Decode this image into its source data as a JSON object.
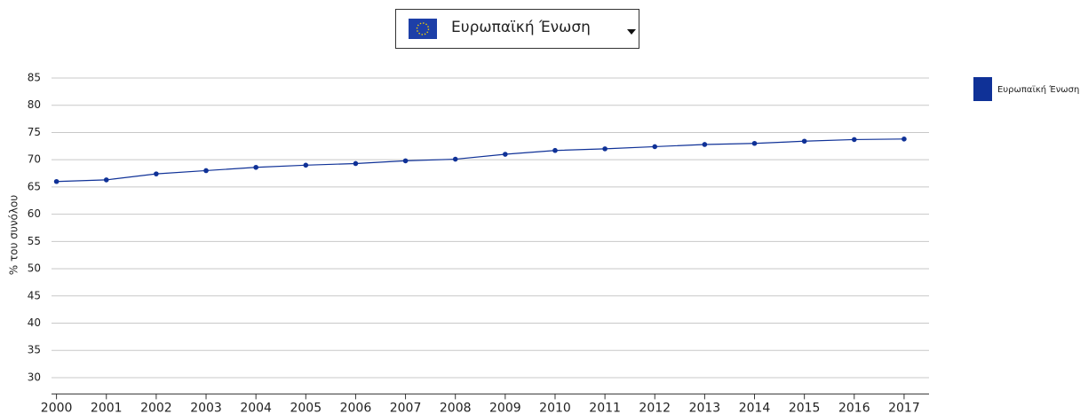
{
  "dropdown": {
    "selected": "Ευρωπαϊκή Ένωση"
  },
  "chart_data": {
    "type": "line",
    "y_label": "% του συνόλου",
    "x": [
      2000,
      2001,
      2002,
      2003,
      2004,
      2005,
      2006,
      2007,
      2008,
      2009,
      2010,
      2011,
      2012,
      2013,
      2014,
      2015,
      2016,
      2017
    ],
    "series": [
      {
        "name": "Ευρωπαϊκή Ένωση",
        "color": "#0f3197",
        "values": [
          66.0,
          66.3,
          67.4,
          68.0,
          68.6,
          69.0,
          69.3,
          69.8,
          70.1,
          71.0,
          71.7,
          72.0,
          72.4,
          72.8,
          73.0,
          73.4,
          73.7,
          73.8
        ]
      }
    ],
    "xlim": [
      1999.9,
      2017.5
    ],
    "xticks": [
      2000,
      2001,
      2002,
      2003,
      2004,
      2005,
      2006,
      2007,
      2008,
      2009,
      2010,
      2011,
      2012,
      2013,
      2014,
      2015,
      2016,
      2017
    ],
    "ylim": [
      27,
      85
    ],
    "yticks": [
      30,
      35,
      40,
      45,
      50,
      55,
      60,
      65,
      70,
      75,
      80,
      85
    ],
    "grid": true,
    "legend": "top-right"
  }
}
